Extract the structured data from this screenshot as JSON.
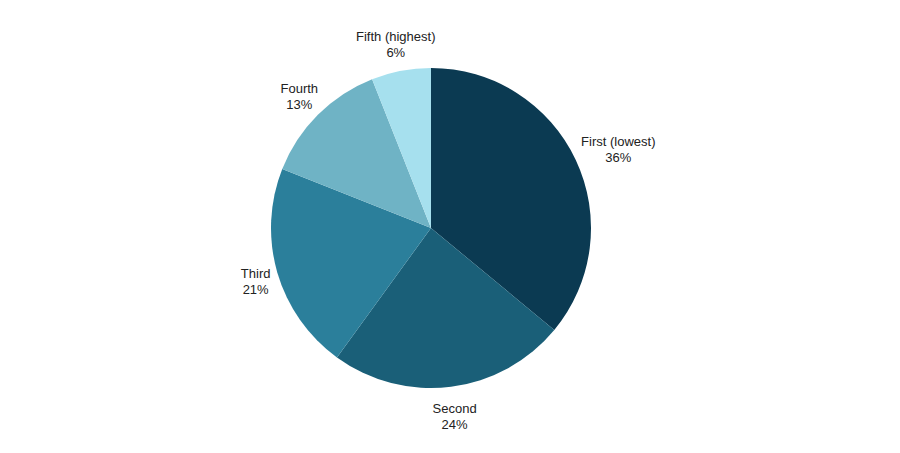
{
  "chart_data": {
    "type": "pie",
    "categories": [
      "First (lowest)",
      "Second",
      "Third",
      "Fourth",
      "Fifth (highest)"
    ],
    "values": [
      36,
      24,
      21,
      13,
      6
    ],
    "value_labels": [
      "36%",
      "24%",
      "21%",
      "13%",
      "6%"
    ],
    "colors": [
      "#0b3a52",
      "#1a5f78",
      "#2b7f9b",
      "#6fb3c5",
      "#a6e0ee"
    ],
    "data_labels": true
  }
}
